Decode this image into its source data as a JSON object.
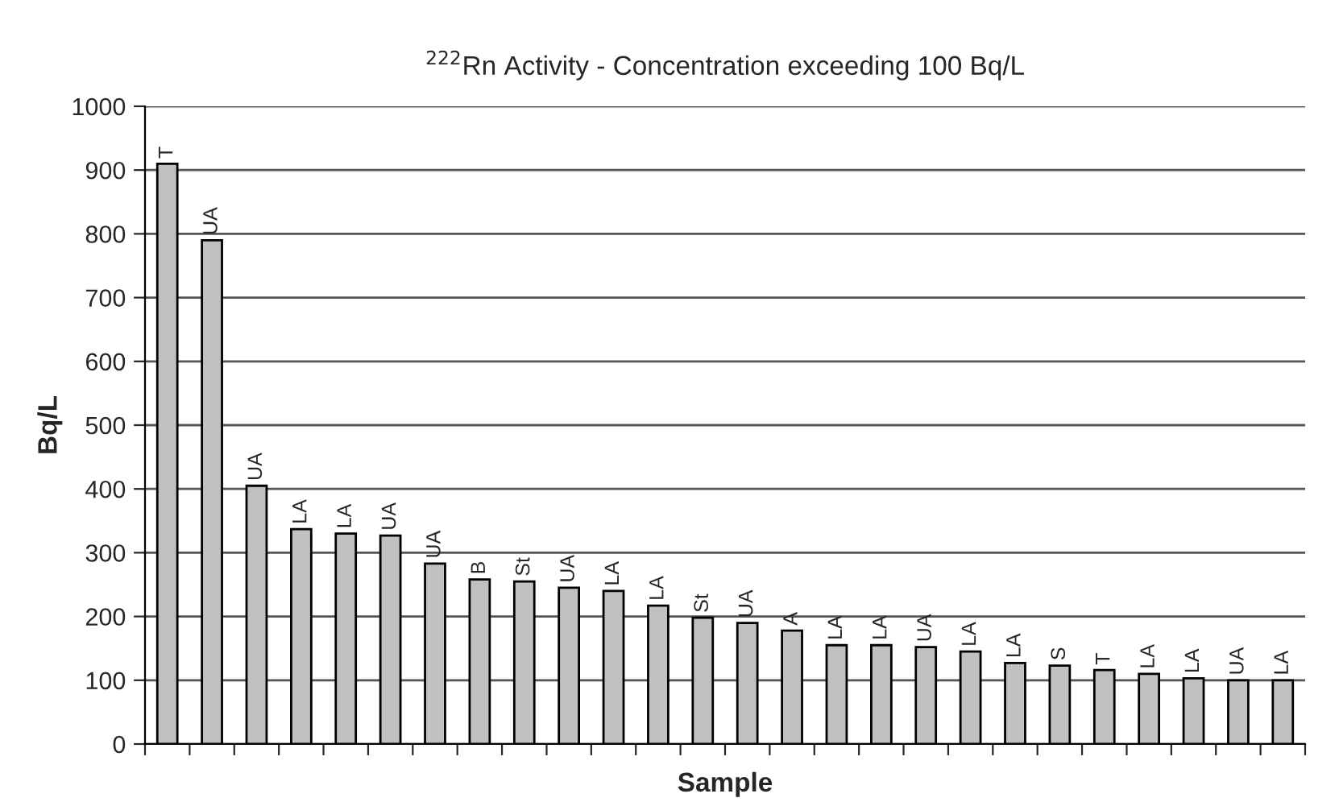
{
  "chart_data": {
    "type": "bar",
    "title": "$^{222}$Rn Activity - Concentration exceeding 100 Bq/L",
    "xlabel": "Sample",
    "ylabel": "Bq/L",
    "categories": [
      "T",
      "UA",
      "UA",
      "LA",
      "LA",
      "UA",
      "UA",
      "B",
      "St",
      "UA",
      "LA",
      "LA",
      "St",
      "UA",
      "A",
      "LA",
      "LA",
      "UA",
      "LA",
      "LA",
      "S",
      "T",
      "LA",
      "LA",
      "UA",
      "LA"
    ],
    "values": [
      910,
      790,
      405,
      337,
      330,
      327,
      283,
      258,
      255,
      245,
      240,
      217,
      198,
      190,
      178,
      155,
      155,
      152,
      145,
      127,
      123,
      116,
      110,
      103,
      100,
      100
    ],
    "color": "#c0c0c0",
    "ylim": [
      0,
      1000
    ],
    "yticks": [
      0,
      100,
      200,
      300,
      400,
      500,
      600,
      700,
      800,
      900,
      1000
    ],
    "grid": "y"
  }
}
